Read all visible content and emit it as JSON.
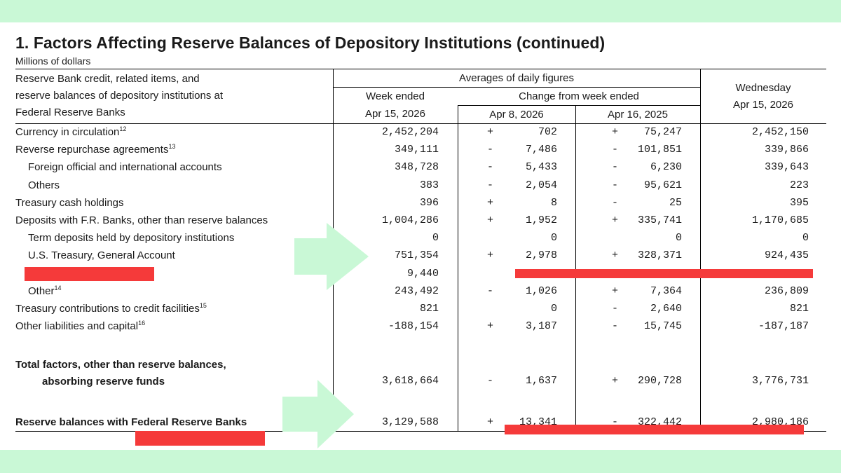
{
  "title": "1. Factors Affecting Reserve Balances of Depository Institutions (continued)",
  "subtitle": "Millions of dollars",
  "header": {
    "row_label": [
      "Reserve Bank credit, related items, and",
      "reserve balances of depository institutions at",
      "Federal Reserve Banks"
    ],
    "group_title": "Averages of daily figures",
    "week_ended": [
      "Week ended",
      "Apr 15, 2026"
    ],
    "change_title": "Change from week ended",
    "change_col1": "Apr 8, 2026",
    "change_col2": "Apr 16, 2025",
    "wednesday": [
      "Wednesday",
      "Apr 15, 2026"
    ]
  },
  "rows": [
    {
      "label": "Currency in circulation",
      "sup": "12",
      "v1": "2,452,204",
      "s2": "+",
      "v2": "702",
      "s3": "+",
      "v3": "75,247",
      "v4": "2,452,150"
    },
    {
      "label": "Reverse repurchase agreements",
      "sup": "13",
      "v1": "349,111",
      "s2": "-",
      "v2": "7,486",
      "s3": "-",
      "v3": "101,851",
      "v4": "339,866"
    },
    {
      "label": "Foreign official and international accounts",
      "sup": "",
      "v1": "348,728",
      "s2": "-",
      "v2": "5,433",
      "s3": "-",
      "v3": "6,230",
      "v4": "339,643"
    },
    {
      "label": "Others",
      "sup": "",
      "v1": "383",
      "s2": "-",
      "v2": "2,054",
      "s3": "-",
      "v3": "95,621",
      "v4": "223"
    },
    {
      "label": "Treasury cash holdings",
      "sup": "",
      "v1": "396",
      "s2": "+",
      "v2": "8",
      "s3": "-",
      "v3": "25",
      "v4": "395"
    },
    {
      "label": "Deposits with F.R. Banks, other than reserve balances",
      "sup": "",
      "v1": "1,004,286",
      "s2": "+",
      "v2": "1,952",
      "s3": "+",
      "v3": "335,741",
      "v4": "1,170,685"
    },
    {
      "label": "Term deposits held by depository institutions",
      "sup": "",
      "v1": "0",
      "s2": "",
      "v2": "0",
      "s3": "",
      "v3": "0",
      "v4": "0"
    },
    {
      "label": "U.S. Treasury, General Account",
      "sup": "",
      "v1": "751,354",
      "s2": "+",
      "v2": "2,978",
      "s3": "+",
      "v3": "328,371",
      "v4": "924,435"
    },
    {
      "label": "",
      "sup": "",
      "v1": "9,440",
      "s2": "",
      "v2": "",
      "s3": "",
      "v3": "",
      "v4": ""
    },
    {
      "label": "Other",
      "sup": "14",
      "v1": "243,492",
      "s2": "-",
      "v2": "1,026",
      "s3": "+",
      "v3": "7,364",
      "v4": "236,809"
    },
    {
      "label": "Treasury contributions to credit facilities",
      "sup": "15",
      "v1": "821",
      "s2": "",
      "v2": "0",
      "s3": "-",
      "v3": "2,640",
      "v4": "821"
    },
    {
      "label": "Other liabilities and capital",
      "sup": "16",
      "v1": "-188,154",
      "s2": "+",
      "v2": "3,187",
      "s3": "-",
      "v3": "15,745",
      "v4": "-187,187"
    }
  ],
  "total": {
    "label_line1": "Total factors, other than reserve balances,",
    "label_line2": "absorbing reserve funds",
    "v1": "3,618,664",
    "s2": "-",
    "v2": "1,637",
    "s3": "+",
    "v3": "290,728",
    "v4": "3,776,731"
  },
  "reserves": {
    "label": "Reserve balances with Federal Reserve Banks",
    "v1": "3,129,588",
    "s2": "+",
    "v2": "13,341",
    "s3": "-",
    "v3": "322,442",
    "v4": "2,980,186"
  },
  "colors": {
    "background": "#c9f8d6",
    "arrow": "#c9f8d6",
    "redaction": "#f53a3a"
  }
}
